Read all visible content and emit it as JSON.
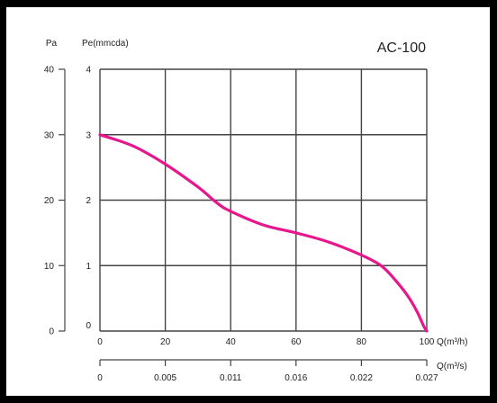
{
  "chart_data": {
    "type": "line",
    "title": "AC-100",
    "axes": {
      "y_left_outer": {
        "label": "Pa",
        "ticks": [
          "0",
          "10",
          "20",
          "30",
          "40"
        ],
        "range": [
          0,
          40
        ]
      },
      "y_left_inner": {
        "label": "Pe(mmcda)",
        "ticks": [
          "0",
          "1",
          "2",
          "3",
          "4"
        ],
        "range": [
          0,
          4
        ]
      },
      "x_primary": {
        "label": "Q(m³/h)",
        "ticks": [
          "0",
          "20",
          "40",
          "60",
          "80",
          "100"
        ],
        "range": [
          0,
          100
        ]
      },
      "x_secondary": {
        "label": "Q(m³/s)",
        "ticks": [
          "0",
          "0.005",
          "0.011",
          "0.016",
          "0.022",
          "0.027"
        ]
      }
    },
    "grid": true,
    "series": [
      {
        "color": "#e8168c",
        "points": [
          [
            0,
            30
          ],
          [
            10,
            28.3
          ],
          [
            20,
            25.5
          ],
          [
            30,
            22
          ],
          [
            36,
            19.5
          ],
          [
            40,
            18.3
          ],
          [
            50,
            16.2
          ],
          [
            60,
            15
          ],
          [
            70,
            13.6
          ],
          [
            80,
            11.6
          ],
          [
            86,
            10
          ],
          [
            90,
            8
          ],
          [
            94,
            5.5
          ],
          [
            97,
            3
          ],
          [
            99,
            0.8
          ],
          [
            100,
            0
          ]
        ]
      }
    ]
  }
}
